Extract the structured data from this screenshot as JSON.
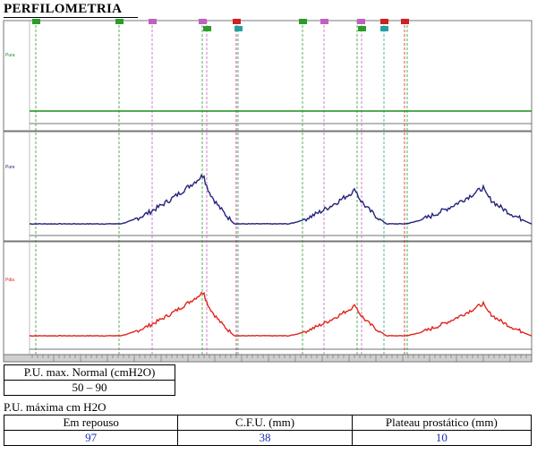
{
  "title": "PERFILOMETRIA",
  "channels": [
    {
      "label": "Pura",
      "color": "#1f8c1f"
    },
    {
      "label": "Pure",
      "color": "#22227a"
    },
    {
      "label": "Pdia",
      "color": "#e0241c"
    }
  ],
  "markers": {
    "colors": {
      "event": "#2a9d2a",
      "lilac": "#c060c0",
      "red": "#cc2222",
      "cyan": "#25a0a0"
    }
  },
  "summary_table": {
    "header": "P.U. max. Normal (cmH2O)",
    "value": "50 – 90"
  },
  "section_label": "P.U. máxima cm H2O",
  "results_table": {
    "headers": [
      "Em repouso",
      "C.F.U. (mm)",
      "Plateau prostático (mm)"
    ],
    "values": [
      "97",
      "38",
      "10"
    ]
  }
}
